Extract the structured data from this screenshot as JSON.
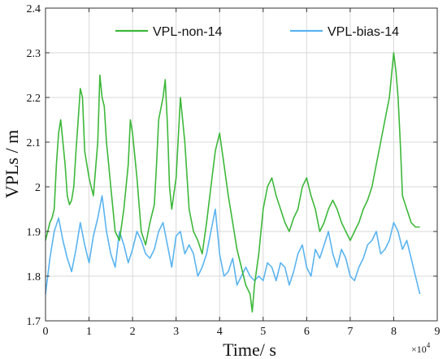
{
  "chart_data": {
    "type": "line",
    "xlabel": "Time/ s",
    "ylabel": "VPLs / m",
    "x_multiplier": "×10",
    "x_multiplier_exp": "4",
    "xlim": [
      0,
      9
    ],
    "ylim": [
      1.7,
      2.4
    ],
    "x_ticks": [
      "0",
      "1",
      "2",
      "3",
      "4",
      "5",
      "6",
      "7",
      "8",
      "9"
    ],
    "y_ticks": [
      "1.7",
      "1.8",
      "1.9",
      "2",
      "2.1",
      "2.2",
      "2.3",
      "2.4"
    ],
    "grid": true,
    "legend_position": "top",
    "series": [
      {
        "name": "VPL-non-14",
        "color": "#3db83a",
        "x": [
          0.0,
          0.05,
          0.1,
          0.15,
          0.2,
          0.25,
          0.3,
          0.35,
          0.4,
          0.45,
          0.5,
          0.55,
          0.6,
          0.65,
          0.7,
          0.75,
          0.8,
          0.85,
          0.9,
          1.0,
          1.1,
          1.2,
          1.25,
          1.3,
          1.35,
          1.4,
          1.45,
          1.5,
          1.55,
          1.6,
          1.7,
          1.8,
          1.9,
          1.95,
          2.0,
          2.1,
          2.2,
          2.3,
          2.4,
          2.5,
          2.55,
          2.6,
          2.7,
          2.75,
          2.8,
          2.85,
          2.9,
          3.0,
          3.1,
          3.2,
          3.3,
          3.4,
          3.5,
          3.6,
          3.7,
          3.8,
          3.9,
          4.0,
          4.1,
          4.2,
          4.3,
          4.4,
          4.5,
          4.6,
          4.7,
          4.75,
          4.8,
          4.9,
          5.0,
          5.1,
          5.2,
          5.3,
          5.4,
          5.5,
          5.6,
          5.7,
          5.8,
          5.9,
          6.0,
          6.1,
          6.2,
          6.3,
          6.4,
          6.5,
          6.6,
          6.7,
          6.8,
          6.9,
          7.0,
          7.1,
          7.2,
          7.3,
          7.4,
          7.5,
          7.6,
          7.7,
          7.8,
          7.9,
          8.0,
          8.05,
          8.1,
          8.15,
          8.2,
          8.3,
          8.4,
          8.5,
          8.6
        ],
        "values": [
          1.88,
          1.9,
          1.92,
          1.93,
          1.95,
          2.05,
          2.12,
          2.15,
          2.1,
          2.05,
          1.98,
          1.96,
          1.97,
          2.0,
          2.08,
          2.15,
          2.22,
          2.2,
          2.08,
          2.02,
          1.98,
          2.1,
          2.25,
          2.2,
          2.18,
          2.1,
          2.05,
          2.0,
          1.95,
          1.9,
          1.88,
          1.95,
          2.05,
          2.15,
          2.12,
          2.02,
          1.9,
          1.87,
          1.92,
          1.96,
          2.05,
          2.15,
          2.2,
          2.24,
          2.14,
          2.0,
          1.95,
          2.02,
          2.2,
          2.1,
          1.95,
          1.9,
          1.88,
          1.85,
          1.92,
          2.0,
          2.08,
          2.12,
          2.05,
          1.98,
          1.92,
          1.86,
          1.82,
          1.78,
          1.76,
          1.72,
          1.78,
          1.85,
          1.95,
          2.0,
          2.02,
          1.98,
          1.95,
          1.92,
          1.9,
          1.93,
          1.95,
          2.0,
          2.02,
          1.98,
          1.95,
          1.9,
          1.92,
          1.95,
          1.97,
          1.95,
          1.92,
          1.9,
          1.88,
          1.9,
          1.92,
          1.95,
          1.97,
          2.0,
          2.05,
          2.1,
          2.15,
          2.2,
          2.3,
          2.26,
          2.2,
          2.1,
          1.98,
          1.95,
          1.92,
          1.91,
          1.91
        ]
      },
      {
        "name": "VPL-bias-14",
        "color": "#5ab4f0",
        "x": [
          0.0,
          0.1,
          0.2,
          0.3,
          0.4,
          0.5,
          0.6,
          0.7,
          0.8,
          0.9,
          1.0,
          1.1,
          1.2,
          1.3,
          1.4,
          1.5,
          1.6,
          1.7,
          1.8,
          1.9,
          2.0,
          2.1,
          2.2,
          2.3,
          2.4,
          2.5,
          2.6,
          2.7,
          2.8,
          2.9,
          3.0,
          3.1,
          3.2,
          3.3,
          3.4,
          3.5,
          3.6,
          3.7,
          3.8,
          3.9,
          4.0,
          4.1,
          4.2,
          4.3,
          4.4,
          4.5,
          4.6,
          4.7,
          4.8,
          4.9,
          5.0,
          5.1,
          5.2,
          5.3,
          5.4,
          5.5,
          5.6,
          5.7,
          5.8,
          5.9,
          6.0,
          6.1,
          6.2,
          6.3,
          6.4,
          6.5,
          6.6,
          6.7,
          6.8,
          6.9,
          7.0,
          7.1,
          7.2,
          7.3,
          7.4,
          7.5,
          7.6,
          7.7,
          7.8,
          7.9,
          8.0,
          8.1,
          8.2,
          8.3,
          8.4,
          8.5,
          8.6
        ],
        "values": [
          1.76,
          1.84,
          1.9,
          1.93,
          1.88,
          1.84,
          1.81,
          1.86,
          1.92,
          1.87,
          1.83,
          1.89,
          1.93,
          1.98,
          1.9,
          1.85,
          1.82,
          1.9,
          1.87,
          1.83,
          1.86,
          1.9,
          1.88,
          1.85,
          1.84,
          1.86,
          1.9,
          1.92,
          1.87,
          1.82,
          1.89,
          1.9,
          1.85,
          1.87,
          1.85,
          1.8,
          1.82,
          1.85,
          1.9,
          1.95,
          1.85,
          1.8,
          1.81,
          1.84,
          1.78,
          1.8,
          1.82,
          1.8,
          1.79,
          1.8,
          1.79,
          1.83,
          1.82,
          1.79,
          1.83,
          1.82,
          1.78,
          1.81,
          1.85,
          1.87,
          1.82,
          1.8,
          1.86,
          1.84,
          1.87,
          1.9,
          1.85,
          1.82,
          1.86,
          1.84,
          1.8,
          1.79,
          1.82,
          1.84,
          1.87,
          1.88,
          1.9,
          1.85,
          1.86,
          1.88,
          1.92,
          1.9,
          1.86,
          1.88,
          1.84,
          1.8,
          1.76
        ]
      }
    ]
  }
}
